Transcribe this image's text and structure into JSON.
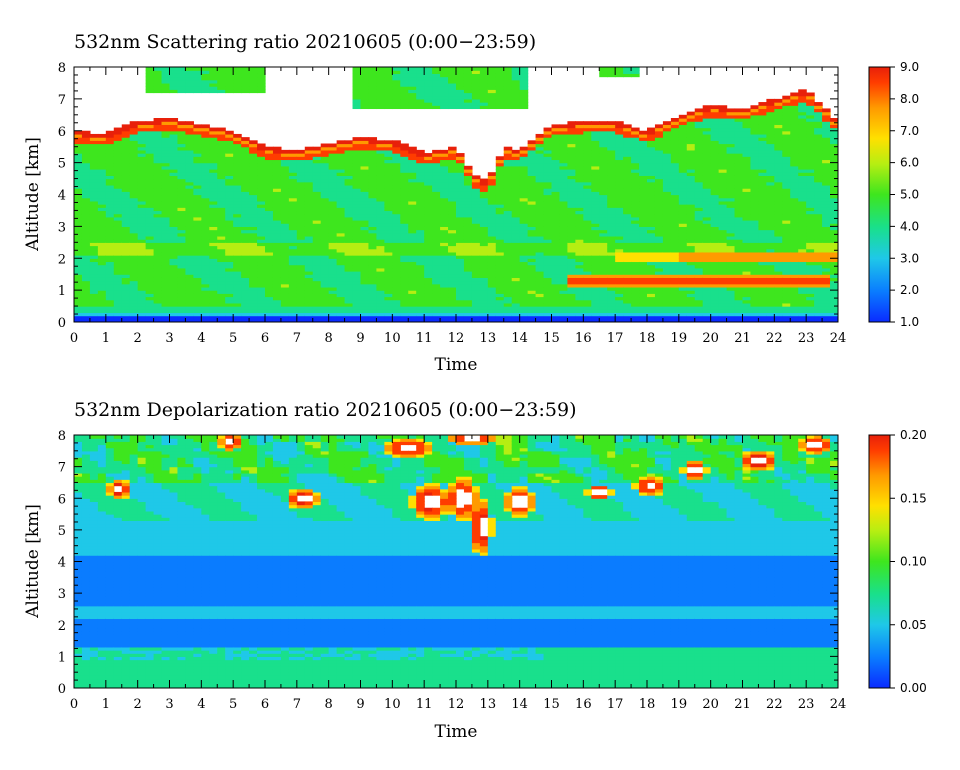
{
  "chart_data": [
    {
      "type": "heatmap",
      "title": "532nm Scattering ratio  20210605 (0:00−23:59)",
      "xlabel": "Time",
      "ylabel": "Altitude [km]",
      "xlim": [
        0,
        24
      ],
      "ylim": [
        0,
        8
      ],
      "xticks": [
        "0",
        "1",
        "2",
        "3",
        "4",
        "5",
        "6",
        "7",
        "8",
        "9",
        "10",
        "11",
        "12",
        "13",
        "14",
        "15",
        "16",
        "17",
        "18",
        "19",
        "20",
        "21",
        "22",
        "23",
        "24"
      ],
      "yticks": [
        "0",
        "1",
        "2",
        "3",
        "4",
        "5",
        "6",
        "7",
        "8"
      ],
      "colorbar": {
        "range": [
          1.0,
          9.0
        ],
        "ticks": [
          "1.0",
          "2.0",
          "3.0",
          "4.0",
          "5.0",
          "6.0",
          "7.0",
          "8.0",
          "9.0"
        ]
      },
      "cloud_top_km": [
        {
          "t": 0,
          "h": 6.0
        },
        {
          "t": 1,
          "h": 5.9
        },
        {
          "t": 2,
          "h": 6.3
        },
        {
          "t": 3,
          "h": 6.4
        },
        {
          "t": 4,
          "h": 6.2
        },
        {
          "t": 5,
          "h": 6.0
        },
        {
          "t": 6,
          "h": 5.5
        },
        {
          "t": 7,
          "h": 5.4
        },
        {
          "t": 8,
          "h": 5.6
        },
        {
          "t": 9,
          "h": 5.8
        },
        {
          "t": 10,
          "h": 5.7
        },
        {
          "t": 11,
          "h": 5.3
        },
        {
          "t": 12,
          "h": 5.5
        },
        {
          "t": 12.6,
          "h": 4.6
        },
        {
          "t": 13,
          "h": 4.4
        },
        {
          "t": 13.5,
          "h": 5.5
        },
        {
          "t": 14,
          "h": 5.4
        },
        {
          "t": 15,
          "h": 6.2
        },
        {
          "t": 16,
          "h": 6.3
        },
        {
          "t": 17,
          "h": 6.3
        },
        {
          "t": 18,
          "h": 6.0
        },
        {
          "t": 19,
          "h": 6.5
        },
        {
          "t": 20,
          "h": 6.8
        },
        {
          "t": 21,
          "h": 6.7
        },
        {
          "t": 22,
          "h": 7.0
        },
        {
          "t": 23,
          "h": 7.3
        },
        {
          "t": 24,
          "h": 6.3
        }
      ]
    },
    {
      "type": "heatmap",
      "title": "532nm Depolarization ratio  20210605 (0:00−23:59)",
      "xlabel": "Time",
      "ylabel": "Altitude [km]",
      "xlim": [
        0,
        24
      ],
      "ylim": [
        0,
        8
      ],
      "xticks": [
        "0",
        "1",
        "2",
        "3",
        "4",
        "5",
        "6",
        "7",
        "8",
        "9",
        "10",
        "11",
        "12",
        "13",
        "14",
        "15",
        "16",
        "17",
        "18",
        "19",
        "20",
        "21",
        "22",
        "23",
        "24"
      ],
      "yticks": [
        "0",
        "1",
        "2",
        "3",
        "4",
        "5",
        "6",
        "7",
        "8"
      ],
      "colorbar": {
        "range": [
          0.0,
          0.2
        ],
        "ticks": [
          "0.00",
          "0.05",
          "0.10",
          "0.15",
          "0.20"
        ]
      }
    }
  ],
  "colors": {
    "scale": [
      "#0a2bff",
      "#0a7cff",
      "#1fc8e8",
      "#19e08c",
      "#3ee61e",
      "#b6ee12",
      "#ffe000",
      "#ff9a00",
      "#ff3c00",
      "#e8200a"
    ]
  }
}
